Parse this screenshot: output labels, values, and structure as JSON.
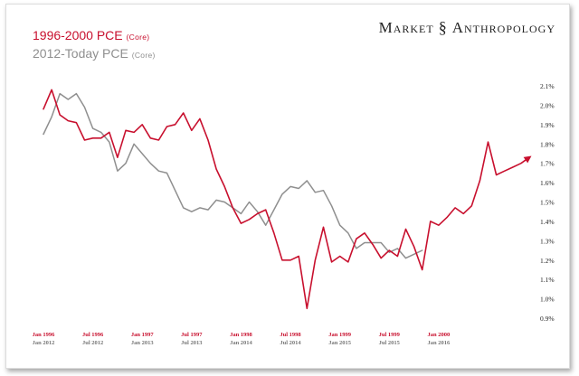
{
  "brand": {
    "left": "Market",
    "logo": "§",
    "right": "Anthropology"
  },
  "legend": {
    "red_main": "1996-2000 PCE",
    "red_tag": "(Core)",
    "gray_main": "2012-Today PCE",
    "gray_tag": "(Core)"
  },
  "colors": {
    "red": "#c8102e",
    "gray": "#8f8f8f"
  },
  "chart_data": {
    "type": "line",
    "y_axis": {
      "position": "right",
      "ylim": [
        0.9,
        2.1
      ],
      "ticks": [
        "0.9%",
        "1.0%",
        "1.1%",
        "1.2%",
        "1.3%",
        "1.4%",
        "1.5%",
        "1.6%",
        "1.7%",
        "1.8%",
        "1.9%",
        "2.0%",
        "2.1%"
      ]
    },
    "x_ticks_top": [
      "Jan 1996",
      "Jul 1996",
      "Jan 1997",
      "Jul 1997",
      "Jan 1998",
      "Jul 1998",
      "Jan 1999",
      "Jul 1999",
      "Jan 2000"
    ],
    "x_ticks_bottom": [
      "Jan 2012",
      "Jul 2012",
      "Jan 2013",
      "Jul 2013",
      "Jan 2014",
      "Jul 2014",
      "Jan 2015",
      "Jul 2015",
      "Jan 2016"
    ],
    "series": [
      {
        "name": "1996-2000 PCE (Core)",
        "color": "#c8102e",
        "arrow": true,
        "values": [
          1.98,
          2.08,
          1.95,
          1.92,
          1.91,
          1.82,
          1.83,
          1.83,
          1.86,
          1.73,
          1.87,
          1.86,
          1.9,
          1.83,
          1.82,
          1.89,
          1.9,
          1.96,
          1.87,
          1.93,
          1.82,
          1.67,
          1.58,
          1.47,
          1.39,
          1.41,
          1.44,
          1.46,
          1.34,
          1.2,
          1.2,
          1.22,
          0.95,
          1.2,
          1.37,
          1.19,
          1.22,
          1.19,
          1.31,
          1.34,
          1.28,
          1.21,
          1.25,
          1.22,
          1.36,
          1.27,
          1.15,
          1.4,
          1.38,
          1.42,
          1.47,
          1.44,
          1.48,
          1.61,
          1.81,
          1.64,
          1.66,
          1.68,
          1.7,
          1.73
        ]
      },
      {
        "name": "2012-Today PCE (Core)",
        "color": "#8f8f8f",
        "arrow": false,
        "values": [
          1.85,
          1.94,
          2.06,
          2.03,
          2.06,
          1.99,
          1.88,
          1.86,
          1.81,
          1.66,
          1.7,
          1.8,
          1.75,
          1.7,
          1.66,
          1.65,
          1.56,
          1.47,
          1.45,
          1.47,
          1.46,
          1.51,
          1.5,
          1.47,
          1.44,
          1.5,
          1.45,
          1.38,
          1.46,
          1.54,
          1.58,
          1.57,
          1.61,
          1.55,
          1.56,
          1.48,
          1.38,
          1.34,
          1.26,
          1.29,
          1.29,
          1.29,
          1.24,
          1.26,
          1.21,
          1.23,
          1.25
        ]
      }
    ]
  }
}
